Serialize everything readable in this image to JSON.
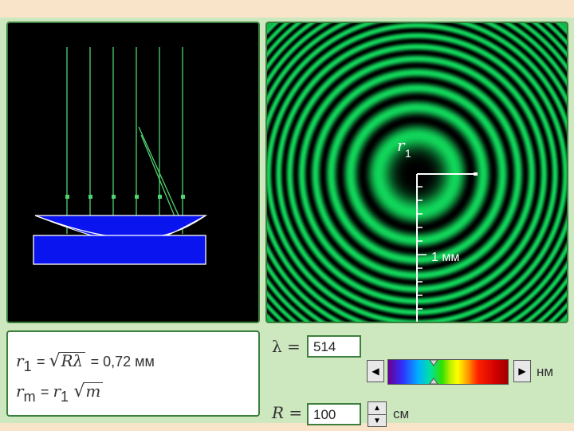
{
  "formula": {
    "line1_lhs_sym": "r",
    "line1_lhs_sub": "1",
    "line1_root": "Rλ",
    "line1_result": "=  0,72 мм",
    "line2_lhs_sym": "r",
    "line2_lhs_sub": "m",
    "line2_rhs_sym": "r",
    "line2_rhs_sub": "1",
    "line2_root": "m"
  },
  "rings": {
    "radius_label": "r",
    "radius_sub": "1",
    "scale_label": "1 мм"
  },
  "controls": {
    "lambda_label": "λ =",
    "lambda_value": "514",
    "lambda_unit": "нм",
    "lambda_position": 0.38,
    "r_label": "R =",
    "r_value": "100",
    "r_unit": "см"
  },
  "colors": {
    "accent": "#3d7f3d",
    "ring_green": "#11d55a",
    "glass_blue": "#0a14ee"
  }
}
